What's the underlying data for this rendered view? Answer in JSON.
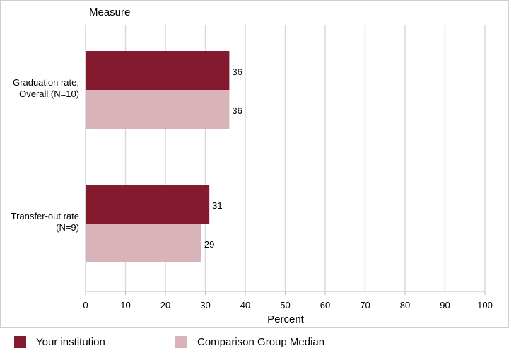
{
  "colors": {
    "series_primary": "#841a2e",
    "series_comparison": "#d8b4ba",
    "grid": "#d9d9d9",
    "axis": "#bdbdbd"
  },
  "chart_data": {
    "type": "bar",
    "orientation": "horizontal",
    "title": "",
    "category_axis_label": "Measure",
    "xlabel": "Percent",
    "xlim": [
      0,
      100
    ],
    "xticks": [
      0,
      10,
      20,
      30,
      40,
      50,
      60,
      70,
      80,
      90,
      100
    ],
    "grid": true,
    "legend_position": "bottom",
    "categories": [
      [
        "Graduation rate,",
        "Overall (N=10)"
      ],
      [
        "Transfer-out rate",
        "(N=9)"
      ]
    ],
    "series": [
      {
        "name": "Your institution",
        "values": [
          36,
          31
        ],
        "color": "#841a2e"
      },
      {
        "name": "Comparison Group Median",
        "values": [
          36,
          29
        ],
        "color": "#d8b4ba"
      }
    ]
  }
}
